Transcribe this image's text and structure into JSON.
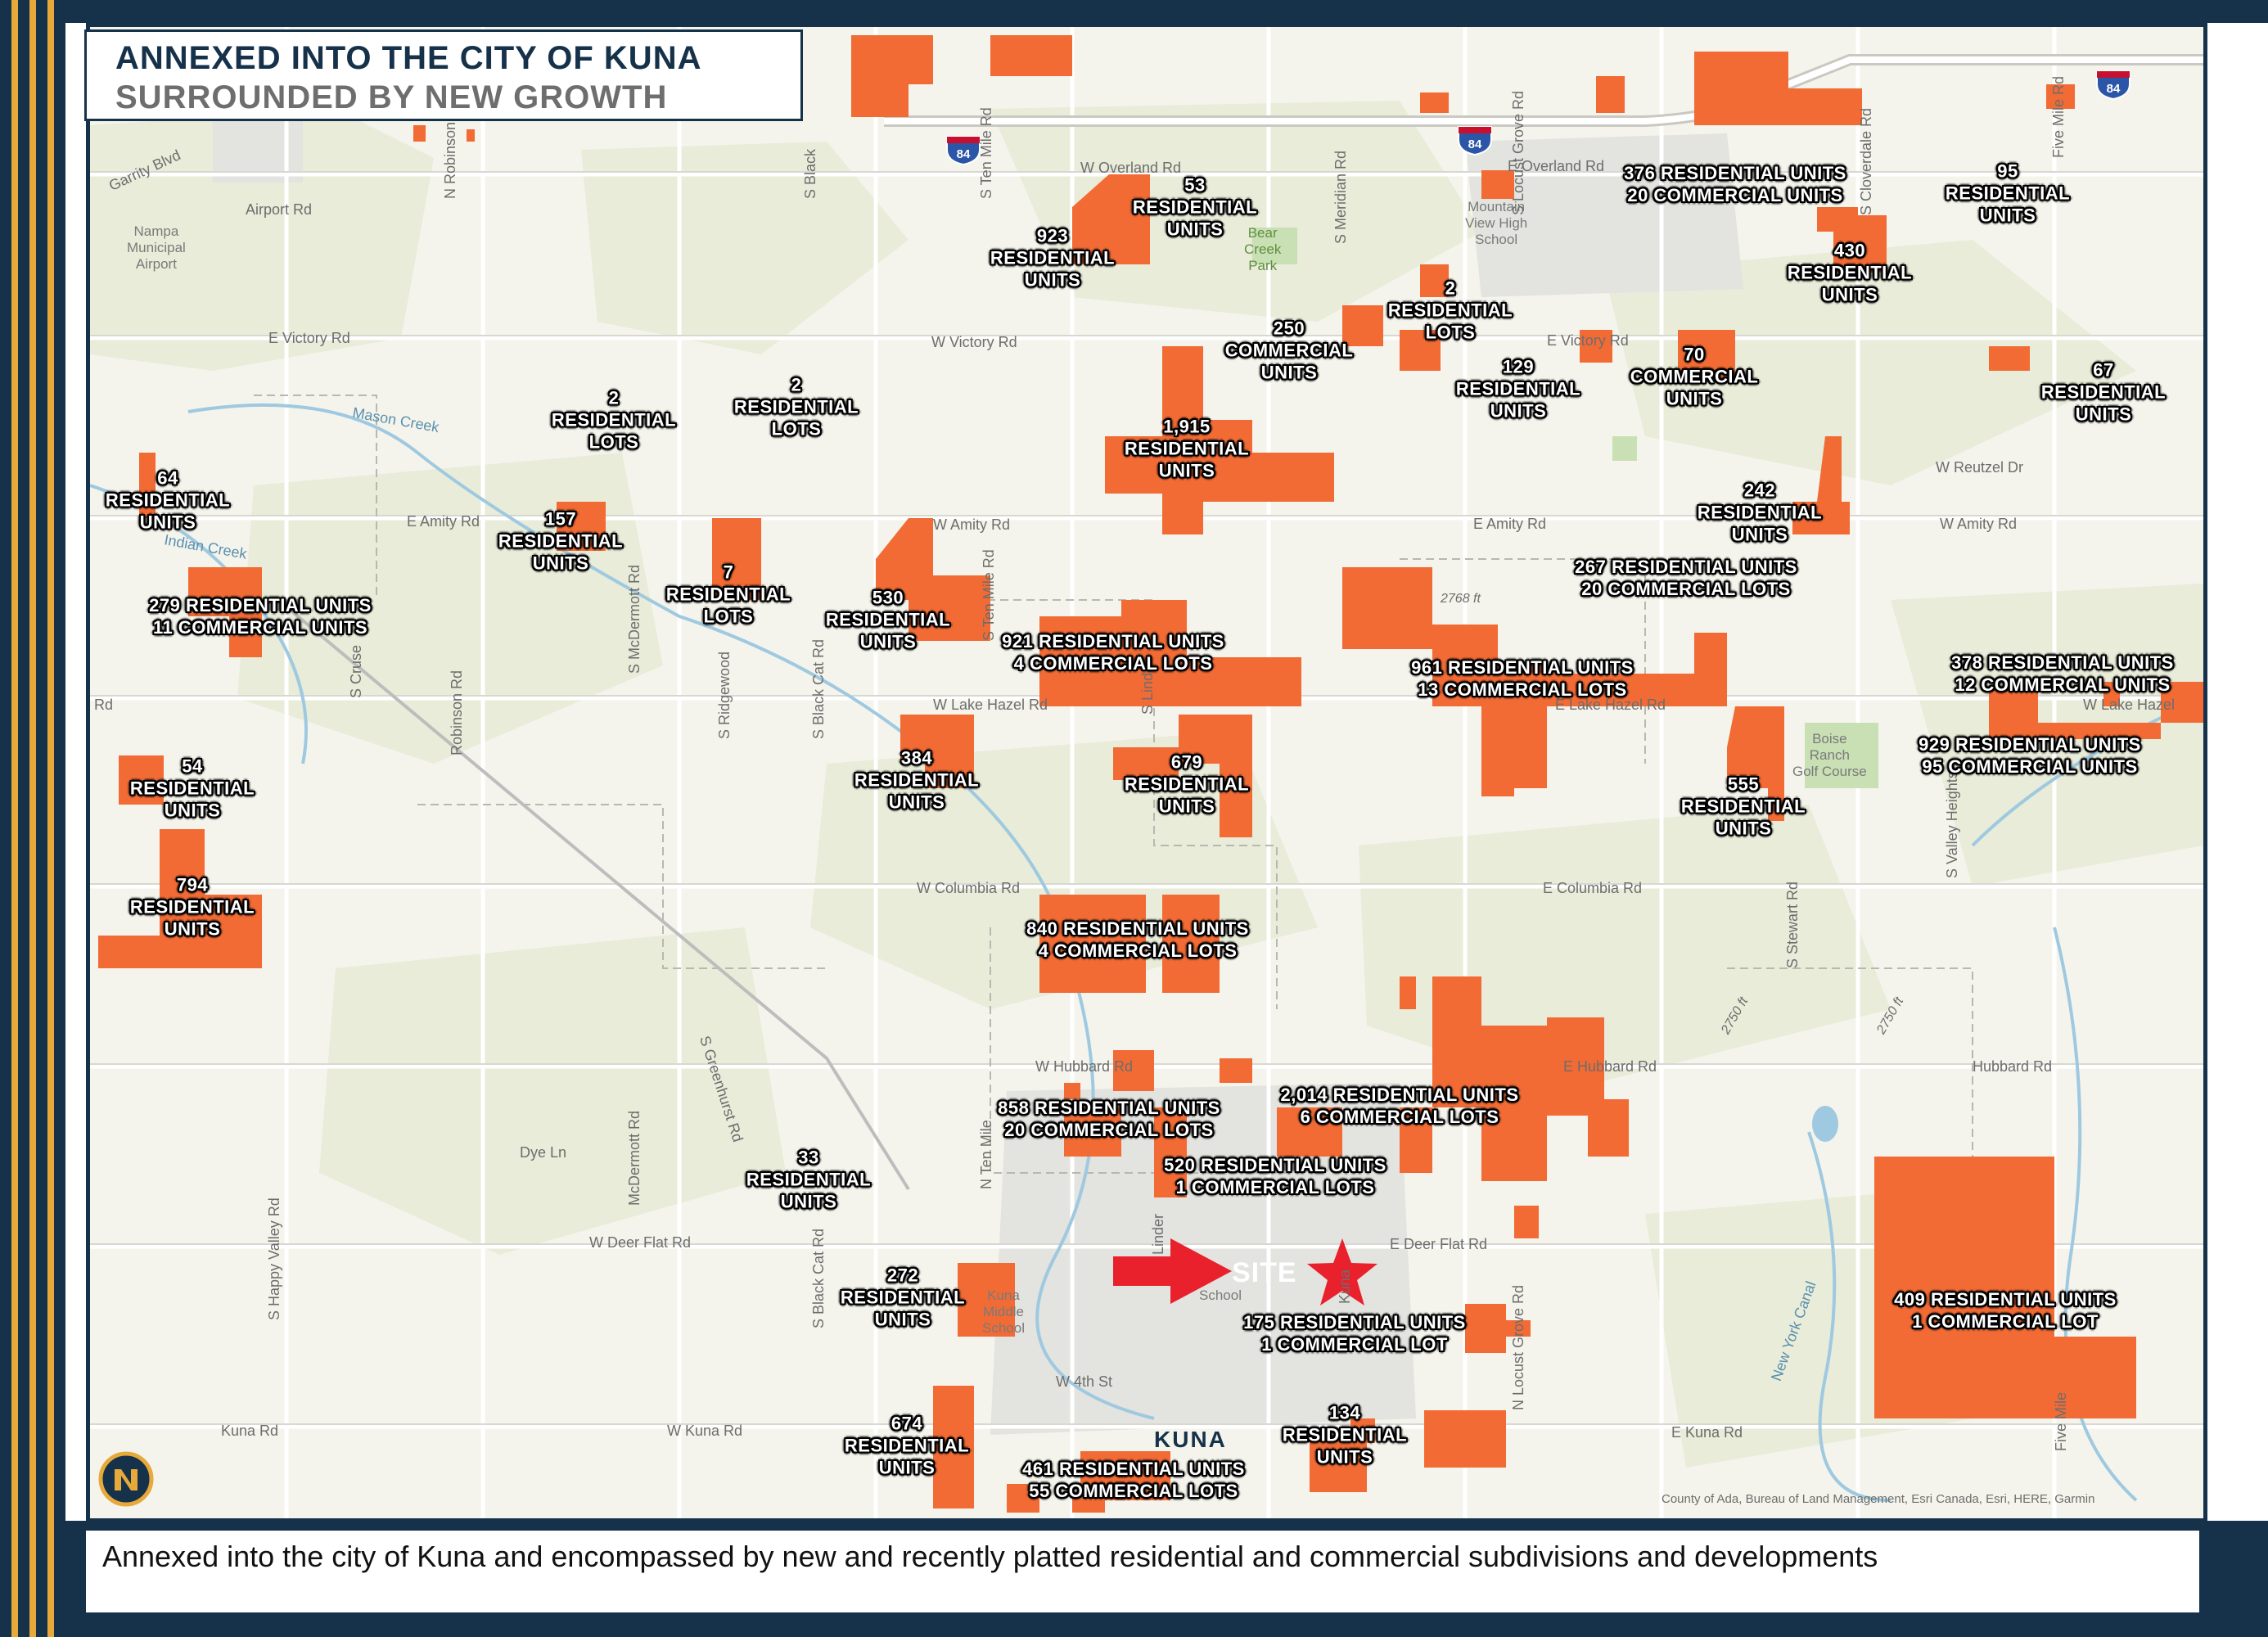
{
  "colors": {
    "navy": "#16324a",
    "gold": "#e6a93a",
    "development": "#f26b35",
    "site_marker": "#e8212d",
    "map_background": "#f4f4ec",
    "water": "#9ec9e0"
  },
  "title": {
    "line1": "ANNEXED INTO THE CITY OF KUNA",
    "line2": "SURROUNDED BY NEW GROWTH"
  },
  "caption": "Annexed into the city of Kuna and encompassed by new and recently platted residential and commercial subdivisions and developments",
  "copyright": "County of Ada, Bureau of Land Management, Esri Canada, Esri, HERE, Garmin",
  "site_label": "SITE",
  "city_label": "KUNA",
  "logo_icon": "compass-logo-icon",
  "highway_shields": [
    "84",
    "84",
    "84"
  ],
  "development_labels": [
    {
      "lines": [
        "53",
        "RESIDENTIAL",
        "UNITS"
      ]
    },
    {
      "lines": [
        "923",
        "RESIDENTIAL",
        "UNITS"
      ]
    },
    {
      "lines": [
        "376  RESIDENTIAL UNITS",
        "20 COMMERCIAL UNITS"
      ]
    },
    {
      "lines": [
        "95",
        "RESIDENTIAL",
        "UNITS"
      ]
    },
    {
      "lines": [
        "430",
        "RESIDENTIAL",
        "UNITS"
      ]
    },
    {
      "lines": [
        "2",
        "RESIDENTIAL",
        "LOTS"
      ]
    },
    {
      "lines": [
        "250",
        "COMMERCIAL",
        "UNITS"
      ]
    },
    {
      "lines": [
        "129",
        "RESIDENTIAL",
        "UNITS"
      ]
    },
    {
      "lines": [
        "70",
        "COMMERCIAL",
        "UNITS"
      ]
    },
    {
      "lines": [
        "67",
        "RESIDENTIAL",
        "UNITS"
      ]
    },
    {
      "lines": [
        "2",
        "RESIDENTIAL",
        "LOTS"
      ]
    },
    {
      "lines": [
        "2",
        "RESIDENTIAL",
        "LOTS"
      ]
    },
    {
      "lines": [
        "1,915",
        "RESIDENTIAL",
        "UNITS"
      ]
    },
    {
      "lines": [
        "64",
        "RESIDENTIAL",
        "UNITS"
      ]
    },
    {
      "lines": [
        "157",
        "RESIDENTIAL",
        "UNITS"
      ]
    },
    {
      "lines": [
        "242",
        "RESIDENTIAL",
        "UNITS"
      ]
    },
    {
      "lines": [
        "267  RESIDENTIAL UNITS",
        "20 COMMERCIAL LOTS"
      ]
    },
    {
      "lines": [
        "7",
        "RESIDENTIAL",
        "LOTS"
      ]
    },
    {
      "lines": [
        "530",
        "RESIDENTIAL",
        "UNITS"
      ]
    },
    {
      "lines": [
        "279  RESIDENTIAL UNITS",
        "11 COMMERCIAL UNITS"
      ]
    },
    {
      "lines": [
        "921  RESIDENTIAL UNITS",
        "4 COMMERCIAL LOTS"
      ]
    },
    {
      "lines": [
        "961  RESIDENTIAL UNITS",
        "13 COMMERCIAL LOTS"
      ]
    },
    {
      "lines": [
        "378  RESIDENTIAL UNITS",
        "12 COMMERCIAL UNITS"
      ]
    },
    {
      "lines": [
        "929  RESIDENTIAL UNITS",
        "95 COMMERCIAL UNITS"
      ]
    },
    {
      "lines": [
        "384",
        "RESIDENTIAL",
        "UNITS"
      ]
    },
    {
      "lines": [
        "679",
        "RESIDENTIAL",
        "UNITS"
      ]
    },
    {
      "lines": [
        "54",
        "RESIDENTIAL",
        "UNITS"
      ]
    },
    {
      "lines": [
        "555",
        "RESIDENTIAL",
        "UNITS"
      ]
    },
    {
      "lines": [
        "794",
        "RESIDENTIAL",
        "UNITS"
      ]
    },
    {
      "lines": [
        "840  RESIDENTIAL UNITS",
        "4 COMMERCIAL LOTS"
      ]
    },
    {
      "lines": [
        "2,014  RESIDENTIAL UNITS",
        "6 COMMERCIAL LOTS"
      ]
    },
    {
      "lines": [
        "858  RESIDENTIAL UNITS",
        "20 COMMERCIAL LOTS"
      ]
    },
    {
      "lines": [
        "33",
        "RESIDENTIAL",
        "UNITS"
      ]
    },
    {
      "lines": [
        "520  RESIDENTIAL UNITS",
        "1 COMMERCIAL LOTS"
      ]
    },
    {
      "lines": [
        "272",
        "RESIDENTIAL",
        "UNITS"
      ]
    },
    {
      "lines": [
        "175  RESIDENTIAL UNITS",
        "1 COMMERCIAL LOT"
      ]
    },
    {
      "lines": [
        "409  RESIDENTIAL UNITS",
        "1 COMMERCIAL LOT"
      ]
    },
    {
      "lines": [
        "674",
        "RESIDENTIAL",
        "UNITS"
      ]
    },
    {
      "lines": [
        "134",
        "RESIDENTIAL",
        "UNITS"
      ]
    },
    {
      "lines": [
        "461  RESIDENTIAL UNITS",
        "55 COMMERCIAL LOTS"
      ]
    }
  ],
  "roads": [
    "W Overland Rd",
    "E Overland Rd",
    "Garrity Blvd",
    "Airport Rd",
    "N Robinson",
    "S Black",
    "S Ten Mile Rd",
    "S Meridian Rd",
    "S Locust Grove Rd",
    "S Cloverdale Rd",
    "Five Mile Rd",
    "E Victory Rd",
    "W Victory Rd",
    "E Victory Rd",
    "W Reutzel Dr",
    "E Amity Rd",
    "W Amity Rd",
    "E Amity Rd",
    "W Amity Rd",
    "S McDermott Rd",
    "S Ridgewood",
    "S Black Cat Rd",
    "S Cruse",
    "Robinson Rd",
    "S Linder",
    "S Ten Mile Rd",
    "W Lake Hazel Rd",
    "E Lake Hazel Rd",
    "W Lake Hazel",
    "Rd",
    "W Columbia Rd",
    "E Columbia Rd",
    "S Stewart Rd",
    "S Valley Heights",
    "S Greenhurst Rd",
    "W Hubbard Rd",
    "Hubbard Rd",
    "E Hubbard Rd",
    "Dye Ln",
    "W Deer Flat Rd",
    "E Deer Flat Rd",
    "S Happy Valley Rd",
    "McDermott Rd",
    "S Black Cat Rd",
    "N Ten Mile",
    "Kuna Rd",
    "W Kuna Rd",
    "E Kuna Rd",
    "W 4th St",
    "N Locust Grove Rd",
    "Five Mile",
    "Linder",
    "Kuna"
  ],
  "places": [
    "Nampa\nMunicipal\nAirport",
    "Bear\nCreek\nPark",
    "Mountain\nView High\nSchool",
    "Boise\nRanch\nGolf Course",
    "Kuna\nMiddle\nSchool",
    "School"
  ],
  "water": [
    "Mason Creek",
    "Indian Creek",
    "New York Canal"
  ],
  "elevations": [
    "2768 ft",
    "2750 ft",
    "2750 ft"
  ]
}
